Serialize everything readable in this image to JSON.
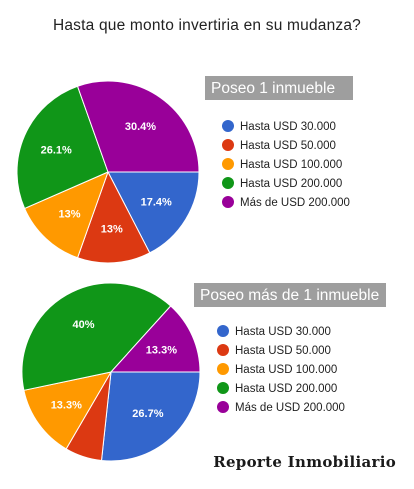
{
  "title": "Hasta que monto invertiria en su mudanza?",
  "watermark": "Reporte Inmobiliario",
  "chart_data": [
    {
      "type": "pie",
      "title": "Poseo 1 inmueble",
      "categories": [
        "Hasta USD 30.000",
        "Hasta USD 50.000",
        "Hasta USD 100.000",
        "Hasta USD 200.000",
        "Más de USD 200.000"
      ],
      "values": [
        17.4,
        13,
        13,
        26.1,
        30.4
      ],
      "labels": [
        "17.4%",
        "13%",
        "13%",
        "26.1%",
        "30.4%"
      ],
      "colors": [
        "#3366cc",
        "#dc3912",
        "#ff9900",
        "#109618",
        "#990099"
      ],
      "legend_position": "right"
    },
    {
      "type": "pie",
      "title": "Poseo más de 1 inmueble",
      "categories": [
        "Hasta USD 30.000",
        "Hasta USD 50.000",
        "Hasta USD 100.000",
        "Hasta USD 200.000",
        "Más de USD 200.000"
      ],
      "values": [
        26.7,
        6.7,
        13.3,
        40,
        13.3
      ],
      "labels": [
        "26.7%",
        "",
        "13.3%",
        "40%",
        "13.3%"
      ],
      "colors": [
        "#3366cc",
        "#dc3912",
        "#ff9900",
        "#109618",
        "#990099"
      ],
      "legend_position": "right"
    }
  ]
}
